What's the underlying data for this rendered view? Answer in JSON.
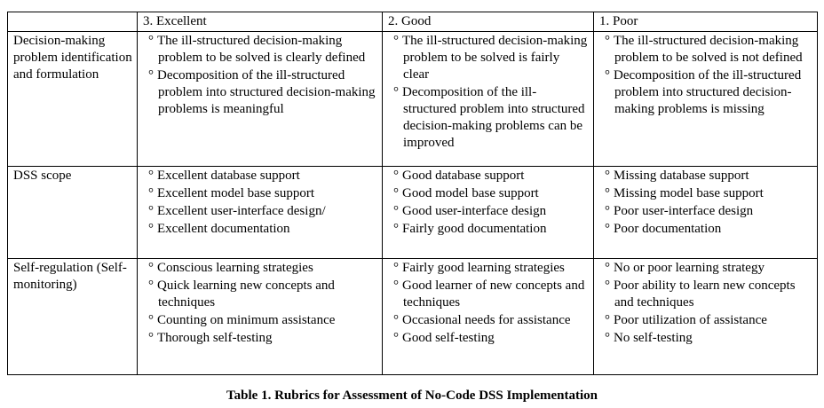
{
  "glyphs": {
    "bullet": "°"
  },
  "table": {
    "headers": [
      "",
      "3. Excellent",
      "2. Good",
      "1. Poor"
    ],
    "rows": [
      {
        "label": "Decision-making problem identification and formulation",
        "excellent": [
          "The ill-structured decision-making problem to be solved is clearly defined",
          "Decomposition of the ill-structured problem into structured decision-making problems is meaningful"
        ],
        "good": [
          "The ill-structured decision-making problem to be solved is fairly clear",
          "Decomposition of the ill-structured problem into structured decision-making problems can be improved"
        ],
        "poor": [
          "The ill-structured decision-making problem to be solved is not defined",
          "Decomposition of the ill-structured problem into structured decision-making problems is missing"
        ]
      },
      {
        "label": "DSS scope",
        "excellent": [
          "Excellent database support",
          "Excellent model base support",
          "Excellent user-interface design/",
          "Excellent documentation"
        ],
        "good": [
          "Good database support",
          "Good model base support",
          "Good user-interface design",
          "Fairly good documentation"
        ],
        "poor": [
          "Missing database support",
          "Missing model base support",
          "Poor user-interface design",
          "Poor documentation"
        ]
      },
      {
        "label": "Self-regulation (Self-monitoring)",
        "excellent": [
          "Conscious learning strategies",
          "Quick learning new concepts and techniques",
          "Counting on minimum assistance",
          "Thorough self-testing"
        ],
        "good": [
          "Fairly good learning strategies",
          "Good learner of new concepts and techniques",
          "Occasional needs for assistance",
          "Good self-testing"
        ],
        "poor": [
          "No or poor learning strategy",
          "Poor ability to learn new concepts and techniques",
          "Poor utilization of assistance",
          "No self-testing"
        ]
      }
    ]
  },
  "caption": "Table 1. Rubrics for Assessment of No-Code DSS Implementation"
}
